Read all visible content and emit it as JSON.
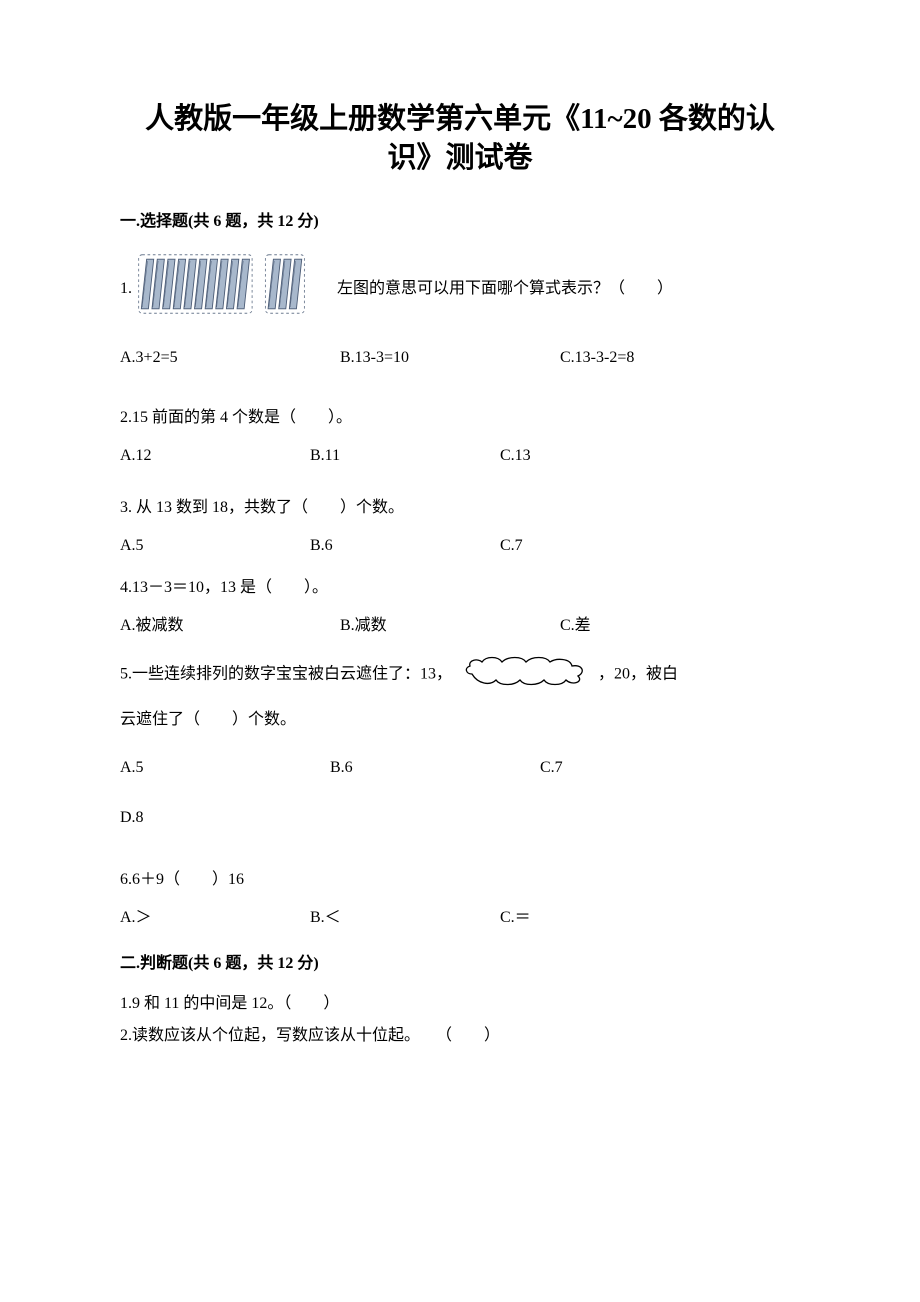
{
  "title_l1": "人教版一年级上册数学第六单元《11~20 各数的认",
  "title_l2": "识》测试卷",
  "section1": "一.选择题(共 6 题，共 12 分)",
  "q1": {
    "num": "1.",
    "tail": " 左图的意思可以用下面哪个算式表示？（　　）",
    "optA": "A.3+2=5",
    "optB": "B.13-3=10",
    "optC": "C.13-3-2=8",
    "img": {
      "fill": "#a8b8cc",
      "stroke": "#4a5a74",
      "dash_stroke": "#6d7b90",
      "bg": "#f6f7f9",
      "slant": 6,
      "stick_w": 8,
      "stick_h": 56,
      "stick_gap": 4,
      "group_gap": 18
    }
  },
  "q2": {
    "stem": "2.15 前面的第 4 个数是（　　）。",
    "optA": "A.12",
    "optB": "B.11",
    "optC": "C.13"
  },
  "q3": {
    "stem": "3. 从 13 数到 18，共数了（　　）个数。",
    "optA": "A.5",
    "optB": "B.6",
    "optC": "C.7"
  },
  "q4": {
    "stem": "4.13－3＝10，13 是（　　）。",
    "optA": "A.被减数",
    "optB": "B.减数",
    "optC": "C.差"
  },
  "q5": {
    "pre": "5.一些连续排列的数字宝宝被白云遮住了：13，",
    "post": "，20，被白",
    "line2": "云遮住了（　　）个数。",
    "optA": "A.5",
    "optB": "B.6",
    "optC": "C.7",
    "optD": "D.8",
    "cloud": {
      "stroke": "#000000",
      "fill": "#ffffff"
    }
  },
  "q6": {
    "stem": "6.6＋9（　　）16",
    "optA": "A.＞",
    "optB": "B.＜",
    "optC": "C.＝"
  },
  "section2": "二.判断题(共 6 题，共 12 分)",
  "j1": "1.9 和 11 的中间是 12。（　　）",
  "j2": "2.读数应该从个位起，写数应该从十位起。　　（　　）"
}
